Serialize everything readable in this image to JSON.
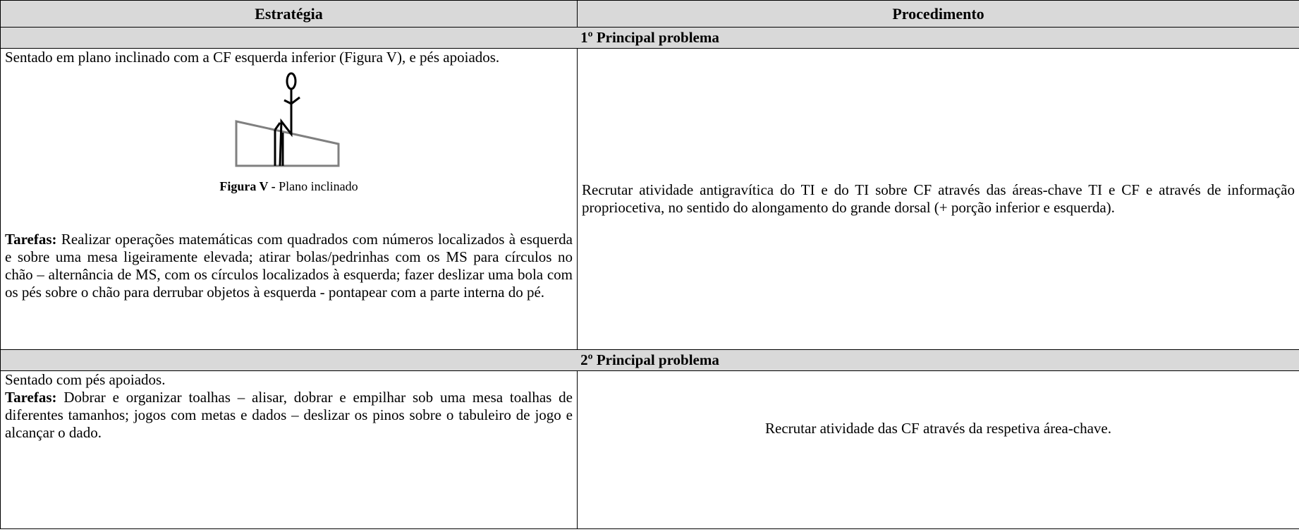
{
  "table": {
    "header": [
      "Estratégia",
      "Procedimento"
    ],
    "sections": [
      {
        "title": "1º Principal problema",
        "strategy": {
          "intro": "Sentado em plano inclinado com a CF esquerda inferior (Figura V), e pés apoiados.",
          "figure_caption": {
            "label": "Figura V -",
            "text": "Plano inclinado"
          },
          "tasks": {
            "label": "Tarefas:",
            "text": "Realizar operações matemáticas com quadrados com números localizados à esquerda e sobre uma mesa ligeiramente elevada; atirar bolas/pedrinhas com os MS para círculos no chão – alternância de MS, com os círculos localizados à esquerda; fazer deslizar uma bola com os pés sobre o chão para derrubar objetos à esquerda - pontapear com a parte interna do pé."
          }
        },
        "procedure": "Recrutar atividade antigravítica do TI e do TI sobre CF através das áreas-chave TI e CF e através de informação propriocetiva, no sentido do alongamento do grande dorsal (+ porção inferior e esquerda)."
      },
      {
        "title": "2º Principal problema",
        "strategy": {
          "intro": "Sentado com pés apoiados.",
          "tasks": {
            "label": "Tarefas:",
            "text": "Dobrar e organizar toalhas – alisar, dobrar e empilhar sob uma mesa toalhas de diferentes tamanhos; jogos com metas e dados – deslizar os pinos sobre o tabuleiro de jogo e alcançar o dado."
          }
        },
        "procedure": "Recrutar atividade das CF através da respetiva área-chave."
      }
    ]
  }
}
